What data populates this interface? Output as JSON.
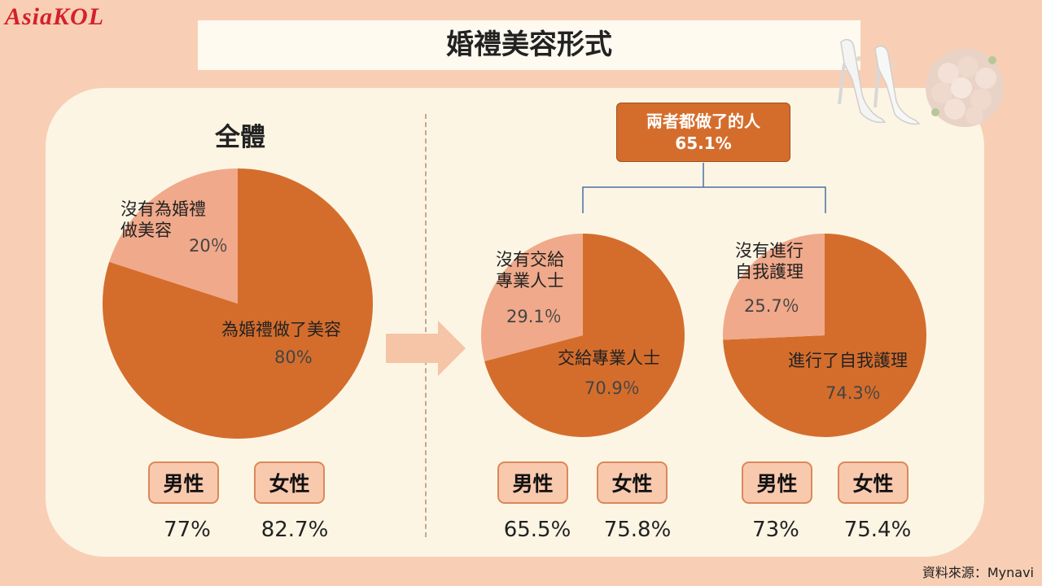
{
  "brand": "AsiaKOL",
  "title": "婚禮美容形式",
  "section_all": "全體",
  "both_box": {
    "line1": "兩者都做了的人",
    "line2": "65.1%"
  },
  "colors": {
    "main_slice": "#d46d2c",
    "minor_slice": "#f0a98a",
    "panel": "#fdf5e4",
    "background": "#f8cfb5"
  },
  "chart_data": [
    {
      "type": "pie",
      "title": "全體",
      "slices": [
        {
          "label": "為婚禮做了美容",
          "value": 80,
          "display": "80%"
        },
        {
          "label_lines": [
            "沒有為婚禮",
            "做美容"
          ],
          "value": 20,
          "display": "20％"
        }
      ],
      "gender": [
        {
          "label": "男性",
          "value": "77%"
        },
        {
          "label": "女性",
          "value": "82.7%"
        }
      ]
    },
    {
      "type": "pie",
      "slices": [
        {
          "label": "交給專業人士",
          "value": 70.9,
          "display": "70.9％"
        },
        {
          "label_lines": [
            "沒有交給",
            "專業人士"
          ],
          "value": 29.1,
          "display": "29.1％"
        }
      ],
      "gender": [
        {
          "label": "男性",
          "value": "65.5%"
        },
        {
          "label": "女性",
          "value": "75.8%"
        }
      ]
    },
    {
      "type": "pie",
      "slices": [
        {
          "label": "進行了自我護理",
          "value": 74.3,
          "display": "74.3％"
        },
        {
          "label_lines": [
            "沒有進行",
            "自我護理"
          ],
          "value": 25.7,
          "display": "25.7％"
        }
      ],
      "gender": [
        {
          "label": "男性",
          "value": "73%"
        },
        {
          "label": "女性",
          "value": "75.4%"
        }
      ]
    }
  ],
  "decoration": {
    "shoes": "wedding-shoes-icon",
    "bouquet": "bouquet-icon"
  },
  "source": "資料來源：Mynavi"
}
